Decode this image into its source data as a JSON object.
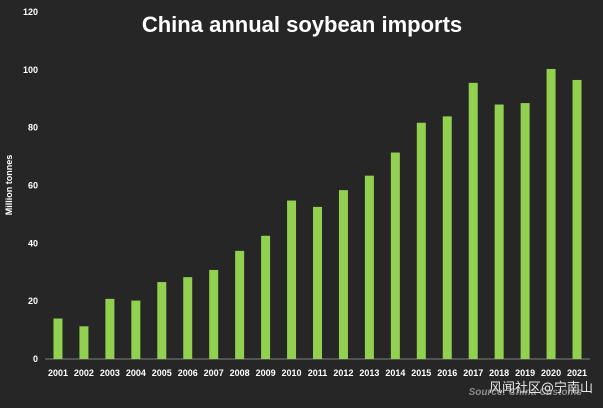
{
  "chart_data": {
    "type": "bar",
    "title": "China annual soybean imports",
    "ylabel": "Million tonnes",
    "xlabel": "",
    "categories": [
      "2001",
      "2002",
      "2003",
      "2004",
      "2005",
      "2006",
      "2007",
      "2008",
      "2009",
      "2010",
      "2011",
      "2012",
      "2013",
      "2014",
      "2015",
      "2016",
      "2017",
      "2018",
      "2019",
      "2020",
      "2021"
    ],
    "values": [
      14.0,
      11.3,
      20.8,
      20.2,
      26.6,
      28.3,
      30.8,
      37.4,
      42.6,
      54.8,
      52.6,
      58.4,
      63.4,
      71.4,
      81.7,
      83.9,
      95.5,
      88.0,
      88.5,
      100.3,
      96.5
    ],
    "ylim": [
      0,
      120
    ],
    "yticks": [
      0,
      20,
      40,
      60,
      80,
      100,
      120
    ],
    "bar_color": "#92d050",
    "grid": false,
    "legend": "none",
    "source": "Source: China Customs"
  },
  "watermark": "风闻社区@宁南山"
}
